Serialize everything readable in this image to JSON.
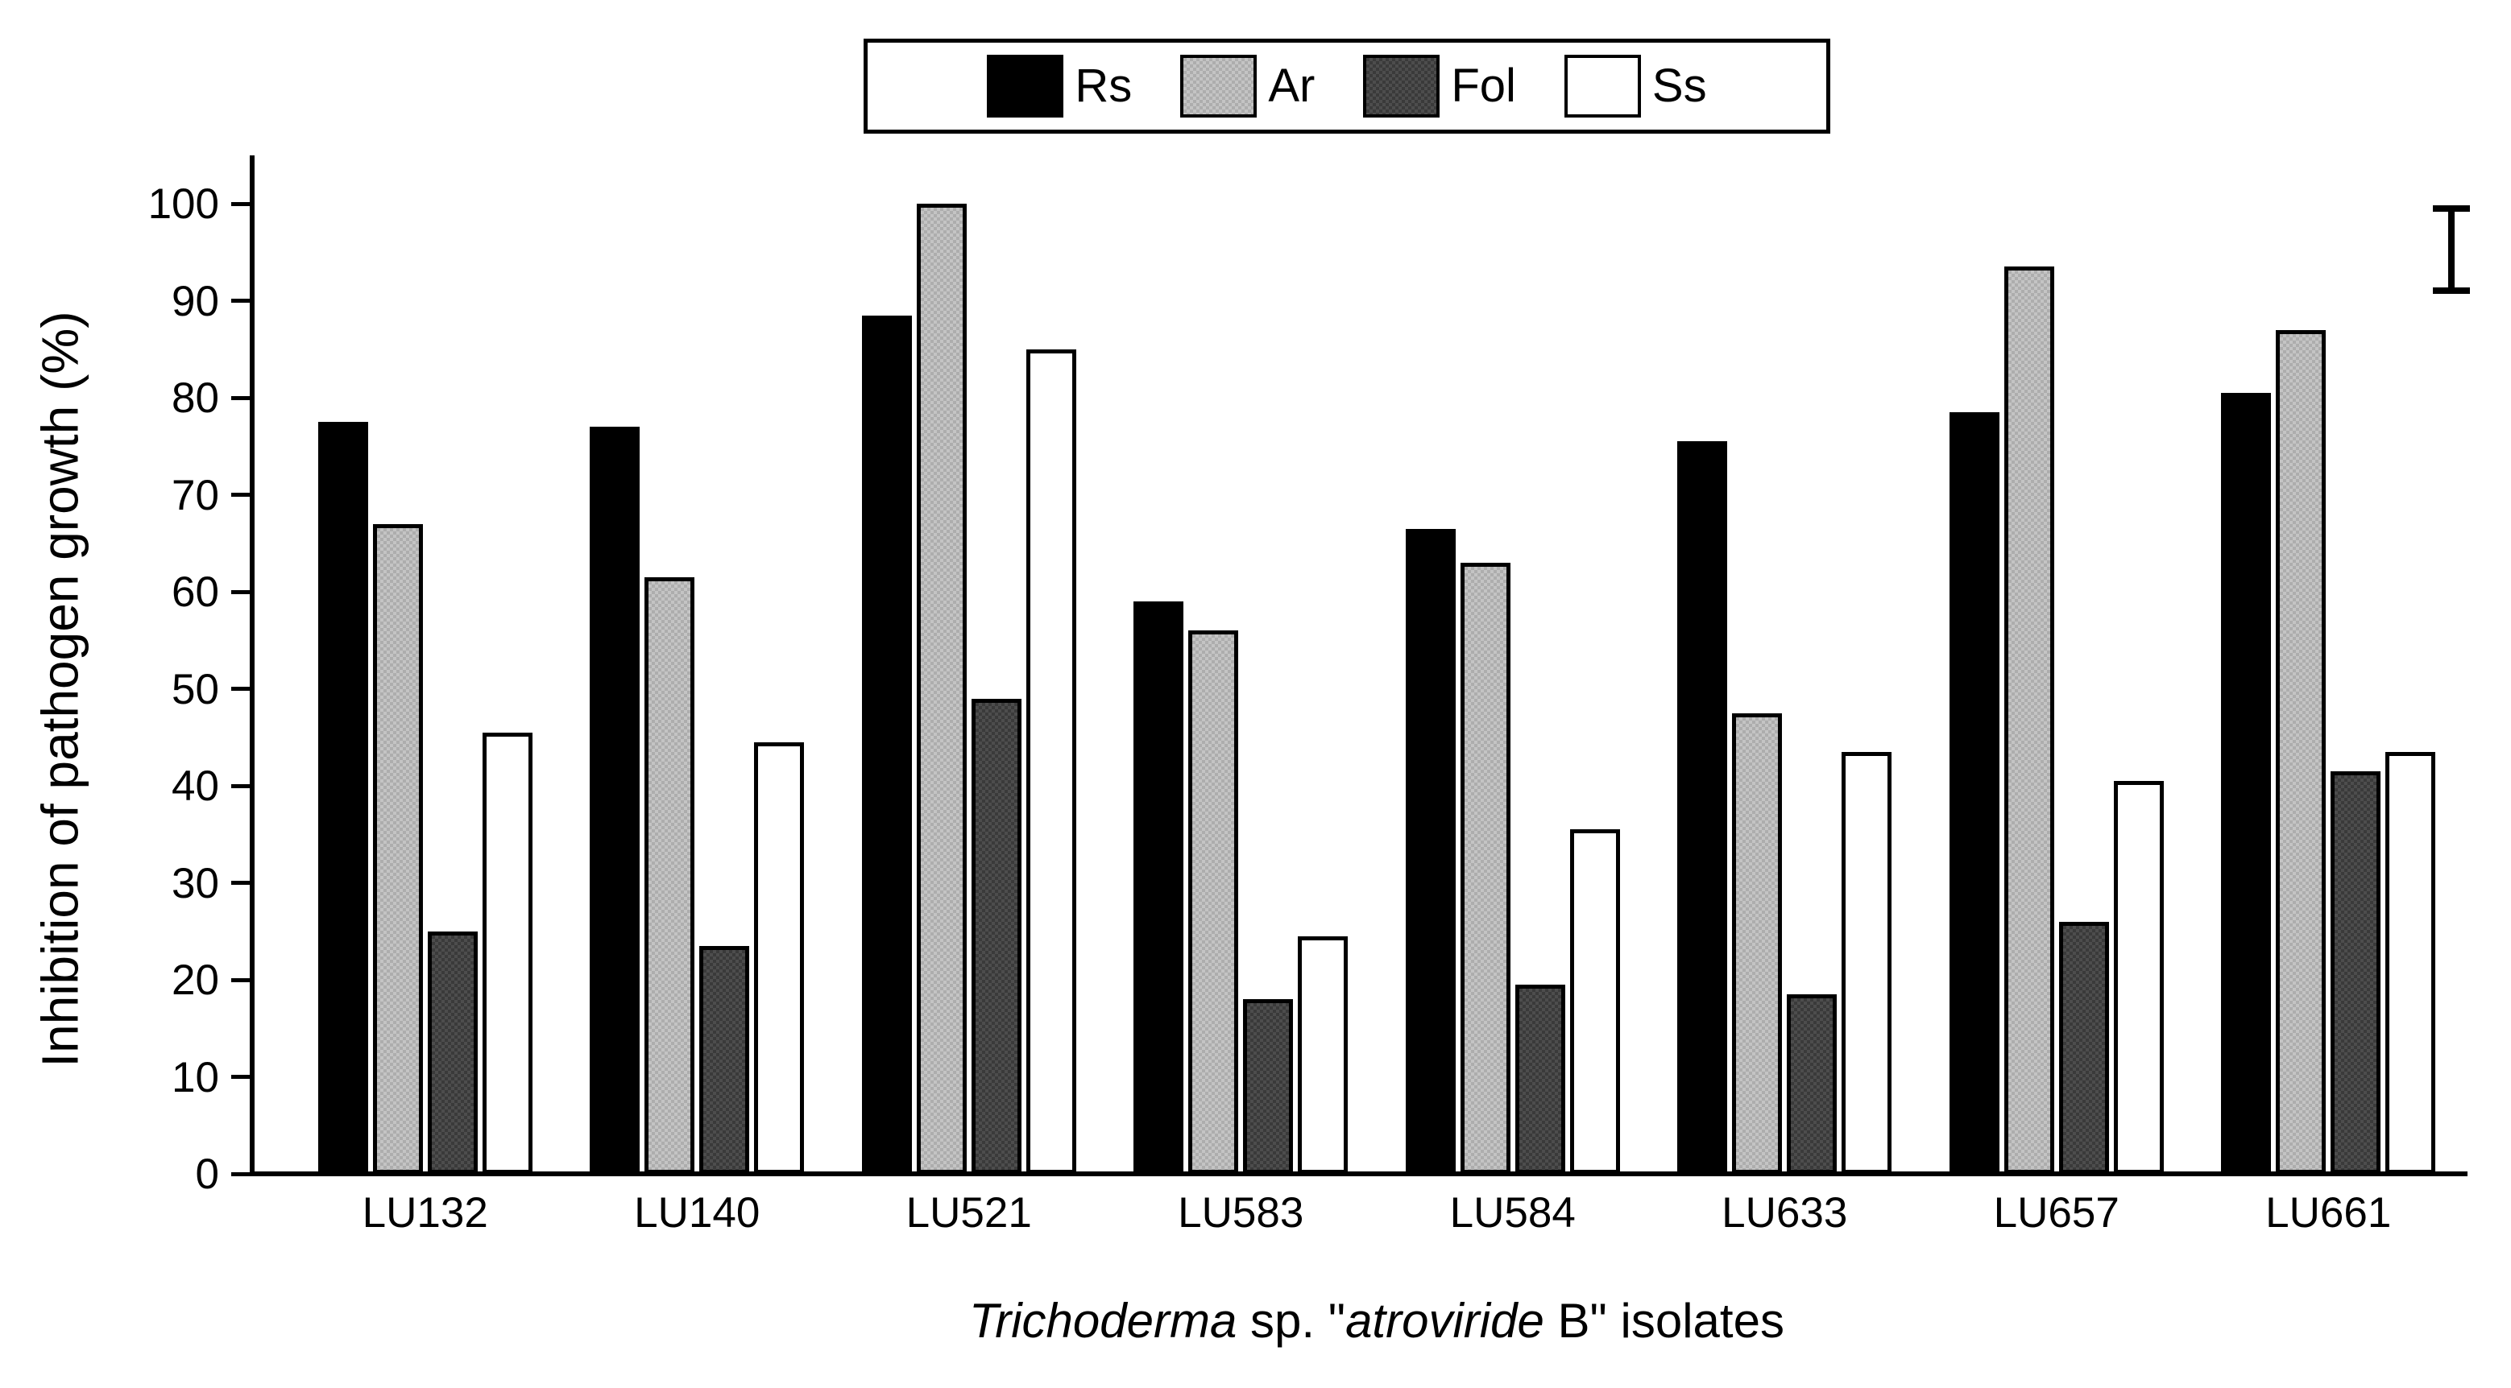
{
  "chart_data": {
    "type": "bar",
    "title": "",
    "ylabel": "Inhibition of pathogen growth (%)",
    "xlabel": "Trichoderma sp. \"atroviride B\" isolates",
    "xlabel_segments": [
      {
        "text": "Trichoderma",
        "italic": true
      },
      {
        "text": " sp. ",
        "italic": false
      },
      {
        "text": "\"",
        "italic": false
      },
      {
        "text": "atroviride",
        "italic": true
      },
      {
        "text": " B\" isolates",
        "italic": false
      }
    ],
    "ylim": [
      0,
      100
    ],
    "yticks": [
      0,
      10,
      20,
      30,
      40,
      50,
      60,
      70,
      80,
      90,
      100
    ],
    "grid": false,
    "legend_position": "top-center",
    "categories": [
      "LU132",
      "LU140",
      "LU521",
      "LU583",
      "LU584",
      "LU633",
      "LU657",
      "LU661"
    ],
    "series": [
      {
        "name": "Rs",
        "color": "#000000",
        "pattern": "solid-black",
        "values": [
          77.5,
          77,
          88.5,
          59,
          66.5,
          75.5,
          78.5,
          80.5
        ]
      },
      {
        "name": "Ar",
        "color": "#b4b4b4",
        "pattern": "speckle-light",
        "values": [
          67,
          61.5,
          100,
          56,
          63,
          47.5,
          93.5,
          87
        ]
      },
      {
        "name": "Fol",
        "color": "#3f3f3f",
        "pattern": "speckle-dark",
        "values": [
          25,
          23.5,
          49,
          18,
          19.5,
          18.5,
          26,
          41.5
        ]
      },
      {
        "name": "Ss",
        "color": "#ffffff",
        "pattern": "plain-white",
        "values": [
          45.5,
          44.5,
          85,
          24.5,
          35.5,
          43.5,
          40.5,
          43.5
        ]
      }
    ],
    "error_bar": {
      "value_top": 99.5,
      "value_bottom": 91
    }
  },
  "colors": {
    "axis": "#000000",
    "text": "#000000",
    "background": "#ffffff"
  }
}
